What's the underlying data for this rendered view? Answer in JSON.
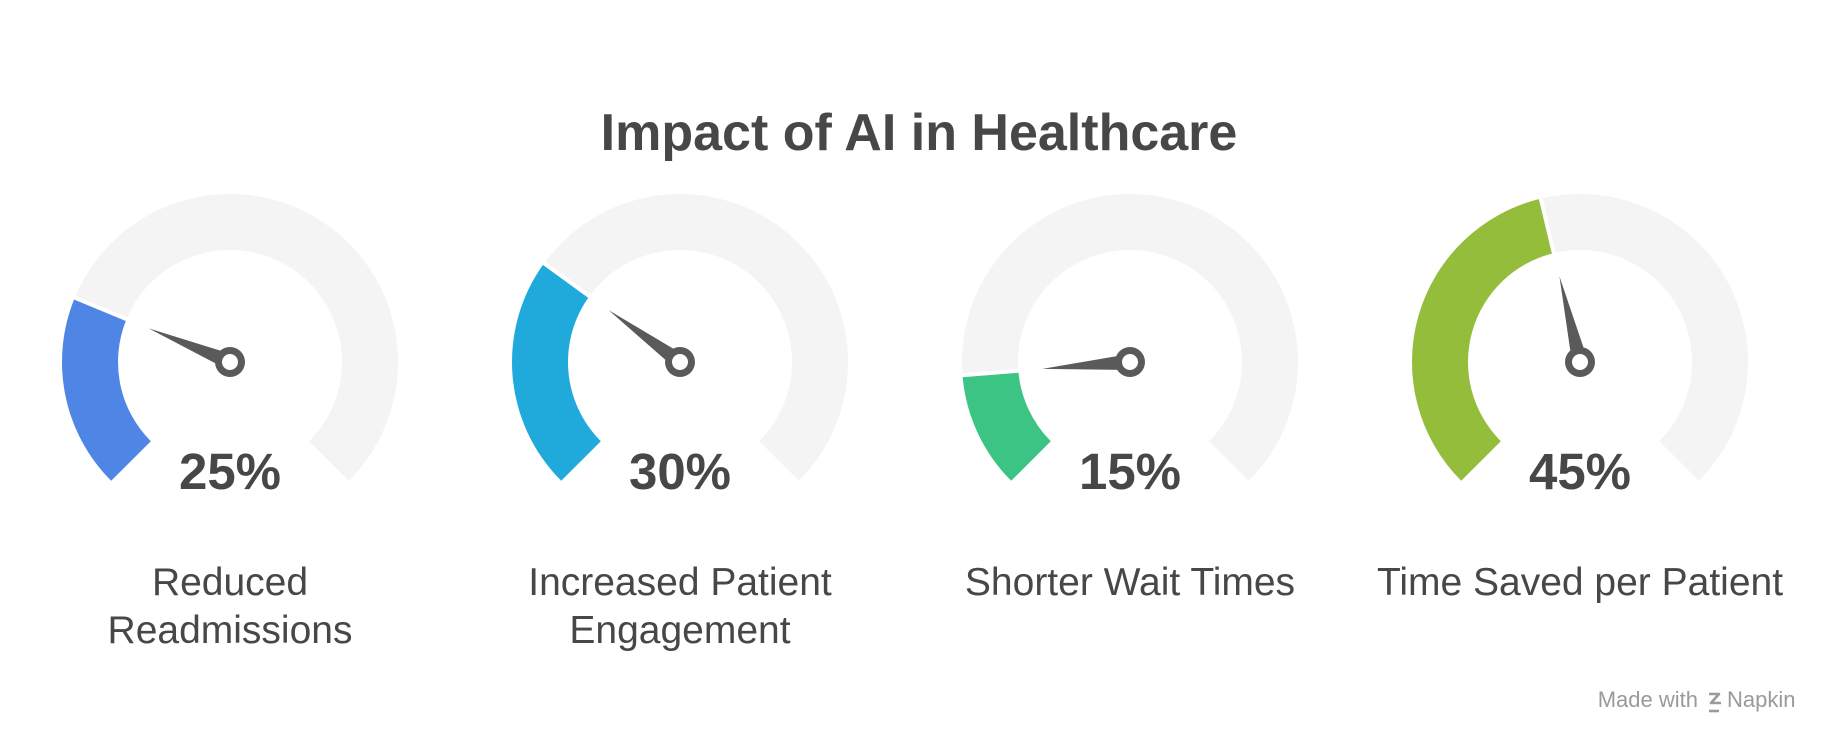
{
  "chart_data": {
    "type": "gauge",
    "title": "Impact of AI in Healthcare",
    "gauges": [
      {
        "value": 25,
        "max": 100,
        "display": "25%",
        "label_lines": [
          "Reduced",
          "Readmissions"
        ],
        "color": "#4f86e6"
      },
      {
        "value": 30,
        "max": 100,
        "display": "30%",
        "label_lines": [
          "Increased Patient",
          "Engagement"
        ],
        "color": "#20aadb"
      },
      {
        "value": 15,
        "max": 100,
        "display": "15%",
        "label_lines": [
          "Shorter Wait Times"
        ],
        "color": "#3cc485"
      },
      {
        "value": 45,
        "max": 100,
        "display": "45%",
        "label_lines": [
          "Time Saved per Patient"
        ],
        "color": "#93bd3b"
      }
    ]
  },
  "colors": {
    "track": "#f4f4f4",
    "needle": "#5a5a5a",
    "text": "#474747",
    "footer": "#9a9a9a"
  },
  "footer": {
    "made_with": "Made with",
    "brand": "Napkin",
    "brand_icon": "napkin-logo-icon"
  }
}
